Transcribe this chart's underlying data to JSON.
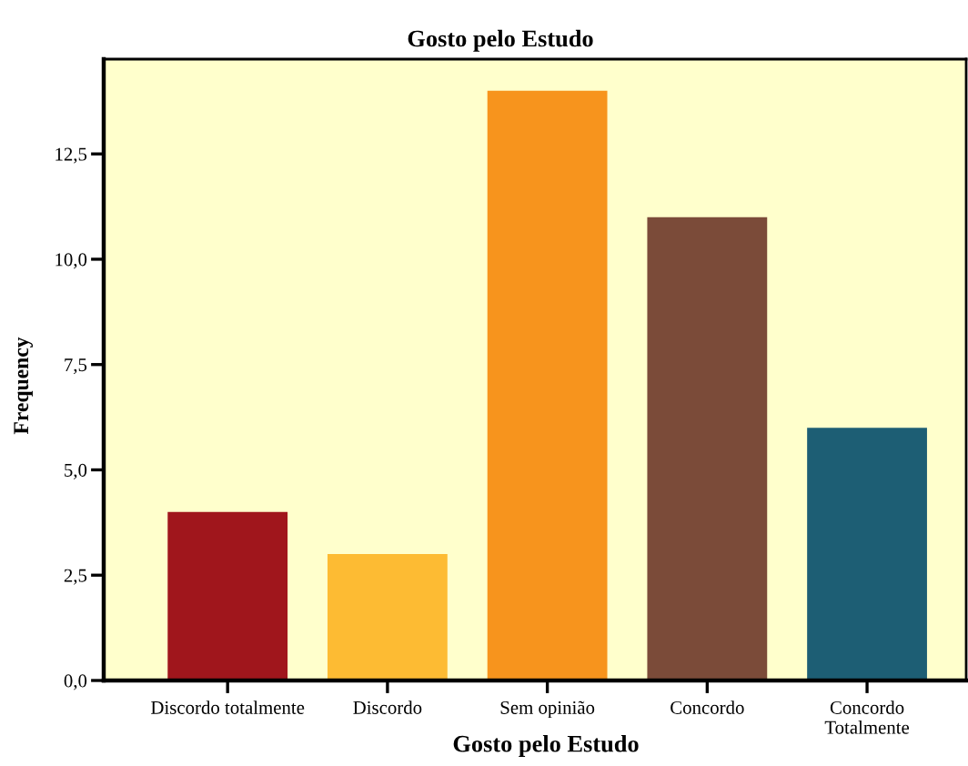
{
  "chart_data": {
    "type": "bar",
    "title": "Gosto pelo Estudo",
    "xlabel": "Gosto pelo Estudo",
    "ylabel": "Frequency",
    "categories": [
      "Discordo totalmente",
      "Discordo",
      "Sem opinião",
      "Concordo",
      "Concordo\nTotalmente"
    ],
    "values": [
      4,
      3,
      14,
      11,
      6
    ],
    "colors": [
      "#a0161c",
      "#fdbb33",
      "#f7941d",
      "#7b4b39",
      "#1d5e74"
    ],
    "ylim": [
      0,
      14.75
    ],
    "yticks": [
      {
        "value": 0,
        "label": "0,0"
      },
      {
        "value": 2.5,
        "label": "2,5"
      },
      {
        "value": 5,
        "label": "5,0"
      },
      {
        "value": 7.5,
        "label": "7,5"
      },
      {
        "value": 10,
        "label": "10,0"
      },
      {
        "value": 12.5,
        "label": "12,5"
      }
    ],
    "grid": false,
    "legend": false
  }
}
